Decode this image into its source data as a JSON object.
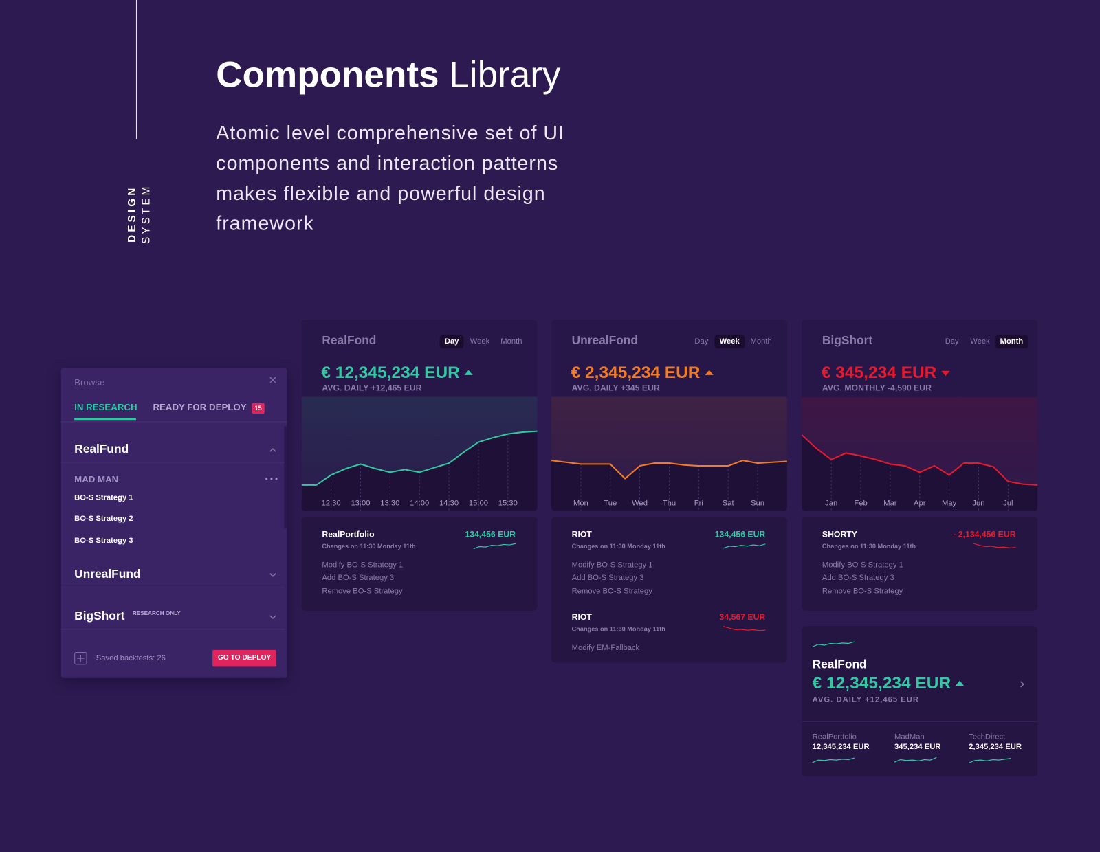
{
  "header": {
    "title_bold": "Components",
    "title_light": "Library",
    "description_lines": [
      "Atomic level comprehensive set of UI",
      "components and interaction patterns",
      "makes flexible and powerful design",
      "framework"
    ],
    "side_bold": "DESIGN",
    "side_light": "SYSTEM"
  },
  "browse": {
    "title": "Browse",
    "tabs": [
      "IN RESEARCH",
      "READY FOR DEPLOY"
    ],
    "badge": "15",
    "groups": [
      {
        "name": "RealFund",
        "owner": "MAD MAN",
        "items": [
          "BO-S Strategy 1",
          "BO-S Strategy 2",
          "BO-S Strategy 3"
        ]
      },
      {
        "name": "UnrealFund"
      },
      {
        "name": "BigShort",
        "tag": "RESEARCH ONLY"
      }
    ],
    "saved": "Saved backtests: 26",
    "button": "GO TO DEPLOY"
  },
  "charts": [
    {
      "name": "RealFond",
      "periods": [
        "Day",
        "Week",
        "Month"
      ],
      "active": 0,
      "amount": "€ 12,345,234 EUR",
      "trend": "up",
      "avg": "AVG. DAILY +12,465 EUR",
      "color": "#2fc9a2",
      "categories": [
        null,
        null,
        "12:30",
        null,
        "13:00",
        null,
        "13:30",
        null,
        "14:00",
        null,
        "14:30",
        null,
        "15:00",
        null,
        "15:30",
        null,
        null
      ],
      "values": [
        14,
        14,
        25,
        32,
        37,
        32,
        28,
        31,
        28,
        33,
        38,
        50,
        61,
        66,
        70,
        72,
        73
      ]
    },
    {
      "name": "UnrealFond",
      "periods": [
        "Day",
        "Week",
        "Month"
      ],
      "active": 1,
      "amount": "€ 2,345,234 EUR",
      "trend": "up",
      "avg": "AVG. DAILY +345 EUR",
      "color": "#f47b20",
      "categories": [
        null,
        null,
        "Mon",
        null,
        "Tue",
        null,
        "Wed",
        null,
        "Thu",
        null,
        "Fri",
        null,
        "Sat",
        null,
        "Sun",
        null,
        null
      ],
      "values": [
        41,
        39,
        37,
        37,
        37,
        21,
        35,
        38,
        38,
        36,
        35,
        35,
        35,
        41,
        38,
        39,
        40
      ]
    },
    {
      "name": "BigShort",
      "periods": [
        "Day",
        "Week",
        "Month"
      ],
      "active": 2,
      "amount": "€ 345,234 EUR",
      "trend": "down",
      "avg": "AVG. MONTHLY -4,590 EUR",
      "color": "#e8192c",
      "categories": [
        null,
        null,
        "Jan",
        null,
        "Feb",
        null,
        "Mar",
        null,
        "Apr",
        null,
        "May",
        null,
        "Jun",
        null,
        "Jul",
        null,
        null
      ],
      "values": [
        69,
        54,
        42,
        49,
        46,
        42,
        37,
        35,
        28,
        35,
        25,
        38,
        38,
        34,
        18,
        15,
        14
      ]
    }
  ],
  "activity": [
    [
      {
        "title": "RealPortfolio",
        "subtitle": "Changes on 11:30 Monday 11th",
        "amount": "134,456 EUR",
        "color": "#2fc9a2",
        "spark": [
          20,
          45,
          40,
          60,
          55,
          70,
          65,
          80
        ],
        "lines": [
          "Modify BO-S Strategy 1",
          "Add BO-S Strategy 3",
          "Remove BO-S Strategy"
        ]
      }
    ],
    [
      {
        "title": "RIOT",
        "subtitle": "Changes on 11:30 Monday 11th",
        "amount": "134,456 EUR",
        "color": "#2fc9a2",
        "spark": [
          25,
          50,
          45,
          60,
          50,
          65,
          55,
          75
        ],
        "lines": [
          "Modify BO-S Strategy 1",
          "Add BO-S Strategy 3",
          "Remove BO-S Strategy"
        ]
      },
      {
        "title": "RIOT",
        "subtitle": "Changes on 11:30 Monday 11th",
        "amount": "34,567 EUR",
        "color": "#e8192c",
        "spark": [
          80,
          60,
          40,
          45,
          35,
          40,
          30,
          35
        ],
        "lines": [
          "Modify EM-Fallback"
        ]
      }
    ],
    [
      {
        "title": "SHORTY",
        "subtitle": "Changes on 11:30 Monday 11th",
        "amount": "- 2,134,456 EUR",
        "color": "#e8192c",
        "spark": [
          80,
          60,
          45,
          50,
          35,
          40,
          30,
          35
        ],
        "lines": [
          "Modify BO-S Strategy 1",
          "Add BO-S Strategy 3",
          "Remove BO-S Strategy"
        ]
      }
    ]
  ],
  "summary": {
    "spark": [
      20,
      50,
      40,
      60,
      55,
      65,
      60,
      80
    ],
    "name": "RealFond",
    "amount": "€ 12,345,234 EUR",
    "trend": "up",
    "avg": "AVG. DAILY +12,465 EUR",
    "color": "#2fc9a2",
    "items": [
      {
        "name": "RealPortfolio",
        "amount": "12,345,234 EUR",
        "spark": [
          20,
          50,
          45,
          55,
          50,
          60,
          55,
          75
        ]
      },
      {
        "name": "MadMan",
        "amount": "345,234 EUR",
        "spark": [
          25,
          55,
          45,
          50,
          40,
          55,
          50,
          80
        ]
      },
      {
        "name": "TechDirect",
        "amount": "2,345,234 EUR",
        "spark": [
          15,
          45,
          50,
          40,
          55,
          50,
          60,
          70
        ]
      }
    ]
  }
}
